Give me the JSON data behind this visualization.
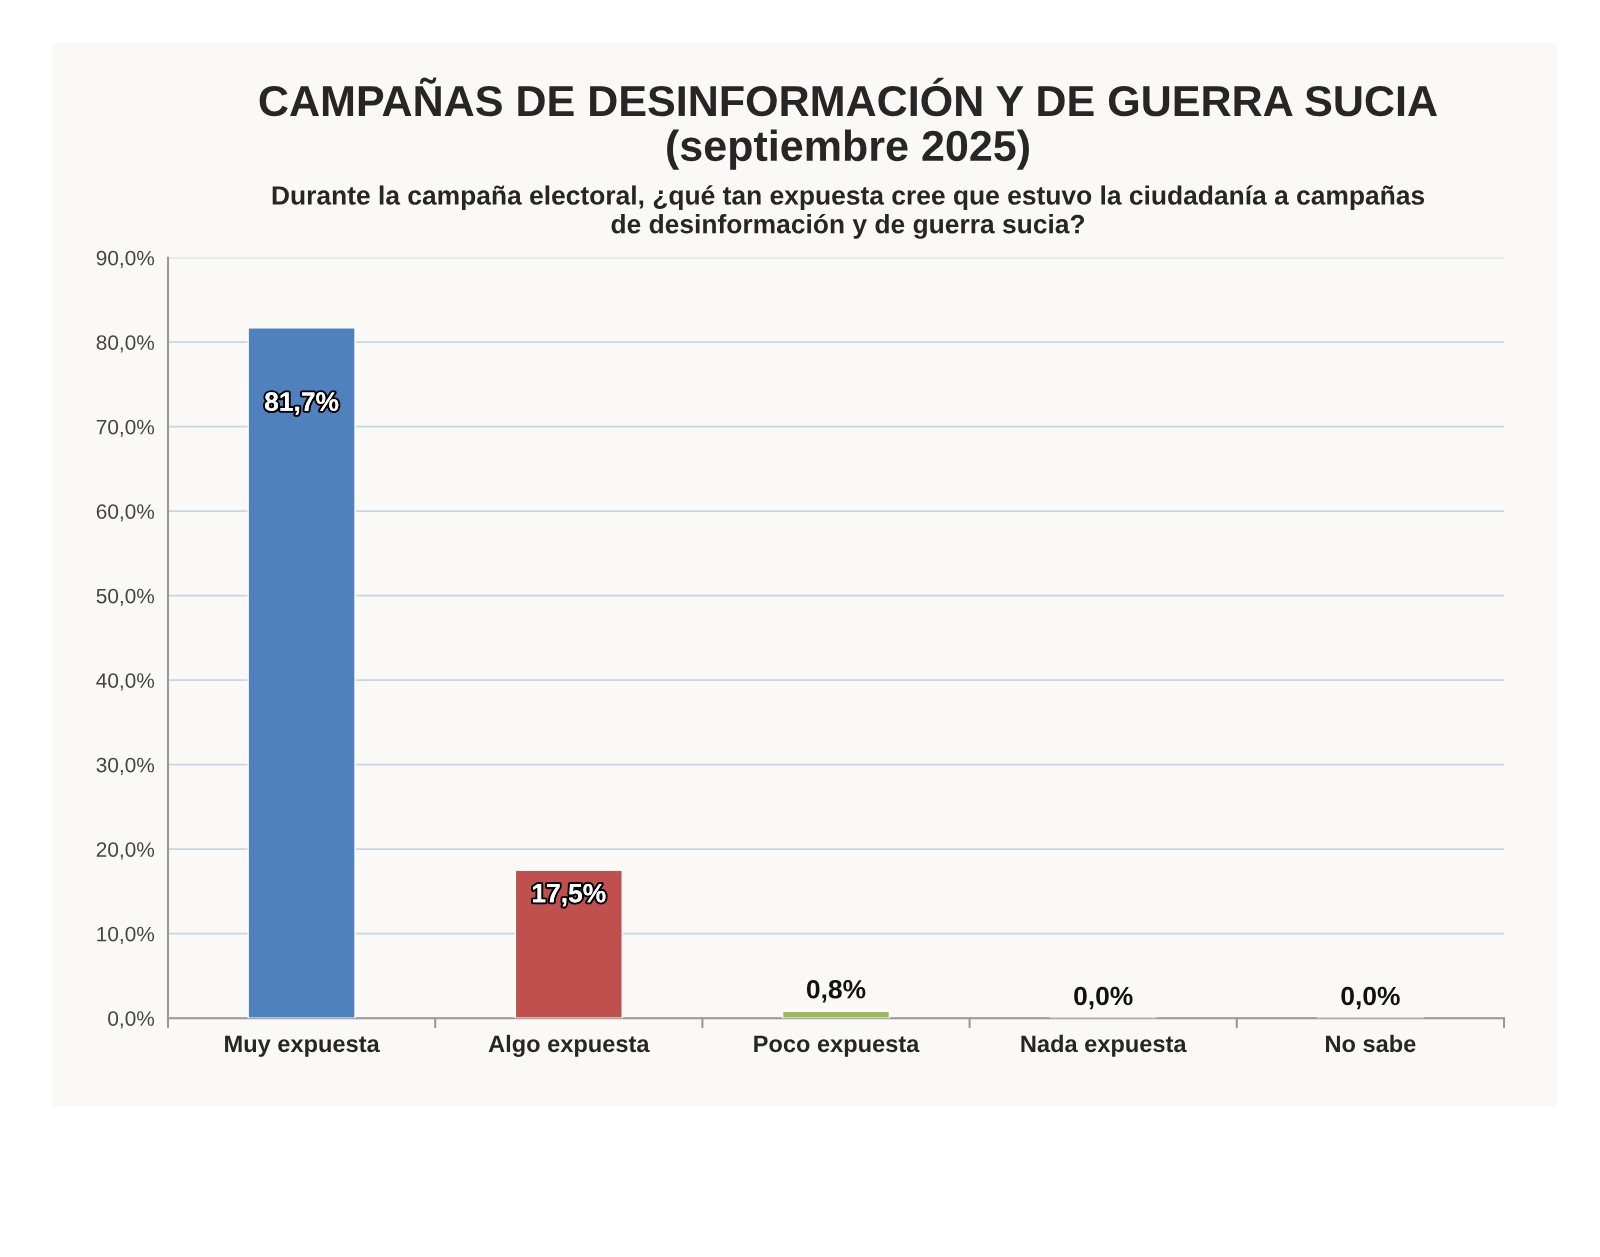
{
  "chart_data": {
    "type": "bar",
    "title": "CAMPAÑAS DE DESINFORMACIÓN Y DE GUERRA SUCIA\n(septiembre 2025)",
    "subtitle": "Durante la campaña electoral, ¿qué tan expuesta cree que estuvo la ciudadanía a campañas\nde desinformación y de guerra sucia?",
    "categories": [
      "Muy expuesta",
      "Algo expuesta",
      "Poco expuesta",
      "Nada expuesta",
      "No sabe"
    ],
    "values": [
      81.7,
      17.5,
      0.8,
      0.0,
      0.0
    ],
    "colors": [
      "#4f81bd",
      "#c0504d",
      "#9bbb59",
      null,
      null
    ],
    "value_labels": [
      "81,7%",
      "17,5%",
      "0,8%",
      "0,0%",
      "0,0%"
    ],
    "ylim": [
      0,
      90
    ],
    "yticks": [
      {
        "value": 0,
        "label": "0,0%"
      },
      {
        "value": 10,
        "label": "10,0%"
      },
      {
        "value": 20,
        "label": "20,0%"
      },
      {
        "value": 30,
        "label": "30,0%"
      },
      {
        "value": 40,
        "label": "40,0%"
      },
      {
        "value": 50,
        "label": "50,0%"
      },
      {
        "value": 60,
        "label": "60,0%"
      },
      {
        "value": 70,
        "label": "70,0%"
      },
      {
        "value": 80,
        "label": "80,0%"
      },
      {
        "value": 90,
        "label": "90,0%"
      }
    ],
    "grid": "y",
    "legend": false
  }
}
